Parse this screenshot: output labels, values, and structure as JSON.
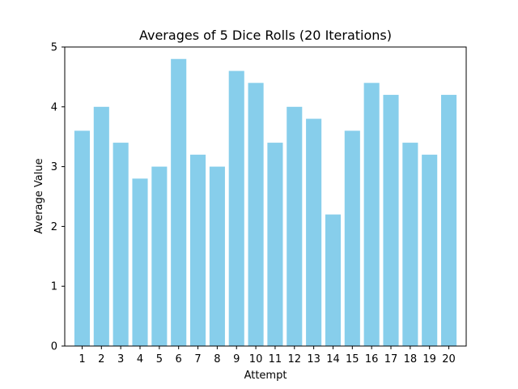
{
  "chart_data": {
    "type": "bar",
    "title": "Averages of 5 Dice Rolls (20 Iterations)",
    "xlabel": "Attempt",
    "ylabel": "Average Value",
    "categories": [
      "1",
      "2",
      "3",
      "4",
      "5",
      "6",
      "7",
      "8",
      "9",
      "10",
      "11",
      "12",
      "13",
      "14",
      "15",
      "16",
      "17",
      "18",
      "19",
      "20"
    ],
    "values": [
      3.6,
      4.0,
      3.4,
      2.8,
      3.0,
      4.8,
      3.2,
      3.0,
      4.6,
      4.4,
      3.4,
      4.0,
      3.8,
      2.2,
      3.6,
      4.4,
      4.2,
      3.4,
      3.2,
      4.2
    ],
    "ylim": [
      0,
      5
    ],
    "yticks": [
      "0",
      "1",
      "2",
      "3",
      "4",
      "5"
    ],
    "bar_color": "#87ceeb",
    "grid": false,
    "legend": "none"
  }
}
